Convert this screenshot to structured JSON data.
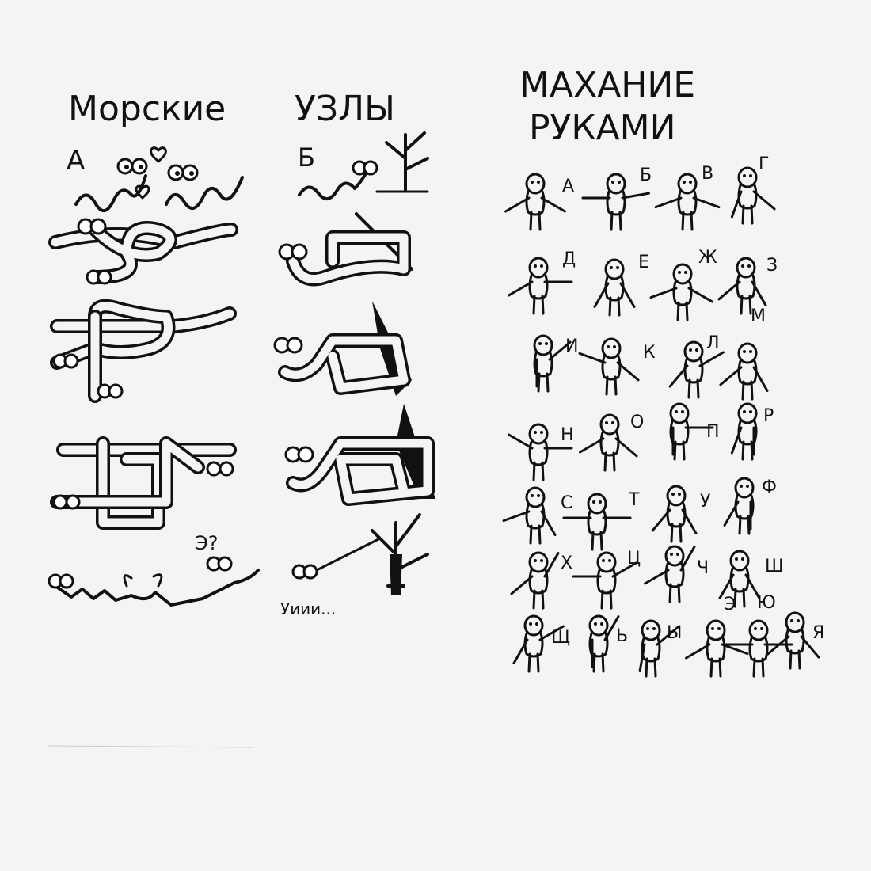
{
  "headings": {
    "knots_word1": "Морские",
    "knots_word2": "УЗЛЫ",
    "semaphore_line1": "МАХАНИЕ",
    "semaphore_line2": "РУКАМИ"
  },
  "knots": {
    "column_a_label": "А",
    "column_b_label": "Б",
    "confused_mark": "Э?",
    "dangling_caption": "Уиии..."
  },
  "semaphore_letters": [
    "А",
    "Б",
    "В",
    "Г",
    "Д",
    "Е",
    "Ж",
    "З",
    "И",
    "К",
    "Л",
    "М",
    "Н",
    "О",
    "П",
    "Р",
    "С",
    "Т",
    "У",
    "Ф",
    "Х",
    "Ц",
    "Ч",
    "Ш",
    "Щ",
    "Ь",
    "Ы",
    "Э",
    "Ю",
    "Я"
  ]
}
